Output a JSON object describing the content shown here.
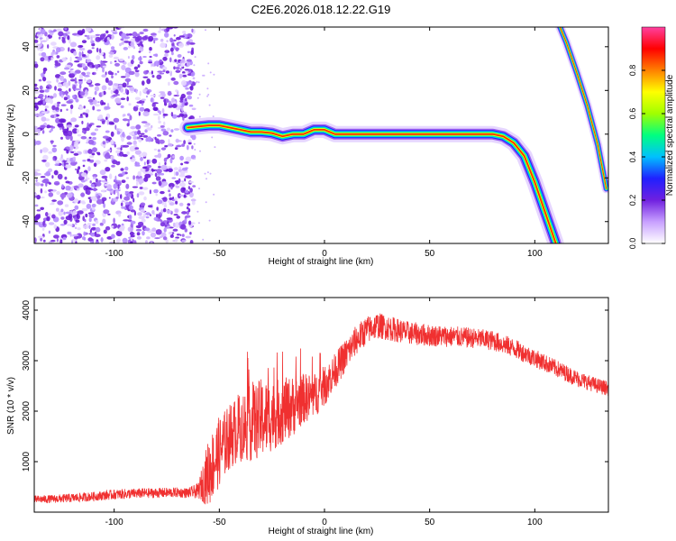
{
  "title": "C2E6.2026.018.12.22.G19",
  "colors": {
    "snr_line": "#f03030",
    "axis": "#000000",
    "background": "#ffffff",
    "noise_purple": "#6a1bd8"
  },
  "chart_data": [
    {
      "type": "heatmap",
      "name": "spectrogram",
      "xlabel": "Height of straight line (km)",
      "ylabel": "Frequency (Hz)",
      "xlim": [
        -138,
        135
      ],
      "ylim": [
        -50,
        49
      ],
      "xticks": [
        -100,
        -50,
        0,
        50,
        100
      ],
      "yticks": [
        -40,
        -20,
        0,
        20,
        40
      ],
      "grid": false,
      "colorbar": {
        "label": "Normalized spectral amplitude",
        "range": [
          0,
          1
        ],
        "ticks": [
          0.0,
          0.2,
          0.4,
          0.6,
          0.8
        ],
        "colormap": [
          "#ffffff",
          "#c8a0ff",
          "#7020e0",
          "#2020ff",
          "#00c0ff",
          "#00ff80",
          "#a0ff00",
          "#ffff00",
          "#ff8000",
          "#ff0000",
          "#ff40a0"
        ]
      },
      "noise_region_x": [
        -138,
        -62
      ],
      "ridges": [
        {
          "x": [
            -65,
            -60,
            -55,
            -50,
            -45,
            -40,
            -35,
            -30,
            -25,
            -20,
            -15,
            -10,
            -5,
            0,
            5,
            10,
            20,
            30,
            40,
            50,
            60,
            70,
            80,
            85,
            90,
            95,
            100,
            105,
            110
          ],
          "y": [
            3,
            3.5,
            4,
            4,
            3,
            2,
            1,
            1,
            0.5,
            -1,
            0,
            0,
            2,
            2,
            0,
            0,
            0,
            0,
            0,
            0,
            0,
            0,
            0,
            -1,
            -4,
            -10,
            -22,
            -36,
            -50
          ]
        },
        {
          "x": [
            112,
            115,
            120,
            125,
            130,
            134
          ],
          "y": [
            49,
            42,
            28,
            13,
            -5,
            -25
          ]
        }
      ]
    },
    {
      "type": "line",
      "name": "snr",
      "xlabel": "Height of straight line (km)",
      "ylabel": "SNR (10 * v/v)",
      "xlim": [
        -138,
        135
      ],
      "ylim": [
        0,
        4250
      ],
      "xticks": [
        -100,
        -50,
        0,
        50,
        100
      ],
      "yticks": [
        1000,
        2000,
        3000,
        4000
      ],
      "grid": false,
      "series": [
        {
          "x": [
            -138,
            -130,
            -120,
            -110,
            -100,
            -90,
            -80,
            -70,
            -65,
            -60,
            -55,
            -50,
            -45,
            -40,
            -35,
            -30,
            -25,
            -20,
            -15,
            -10,
            -5,
            0,
            5,
            10,
            15,
            20,
            25,
            30,
            40,
            50,
            60,
            70,
            80,
            90,
            100,
            110,
            120,
            130,
            135
          ],
          "y": [
            250,
            260,
            280,
            310,
            350,
            370,
            380,
            390,
            380,
            420,
            800,
            1200,
            1500,
            1700,
            1750,
            1850,
            1900,
            2000,
            2100,
            2250,
            2300,
            2500,
            2800,
            3100,
            3400,
            3600,
            3700,
            3650,
            3550,
            3500,
            3480,
            3450,
            3400,
            3250,
            3050,
            2850,
            2650,
            2500,
            2450
          ],
          "noise": [
            80,
            80,
            90,
            90,
            100,
            100,
            100,
            100,
            100,
            150,
            700,
            700,
            650,
            700,
            750,
            800,
            700,
            650,
            600,
            500,
            450,
            400,
            350,
            330,
            300,
            280,
            260,
            250,
            230,
            220,
            210,
            200,
            200,
            190,
            180,
            170,
            160,
            150,
            150
          ]
        }
      ]
    }
  ]
}
